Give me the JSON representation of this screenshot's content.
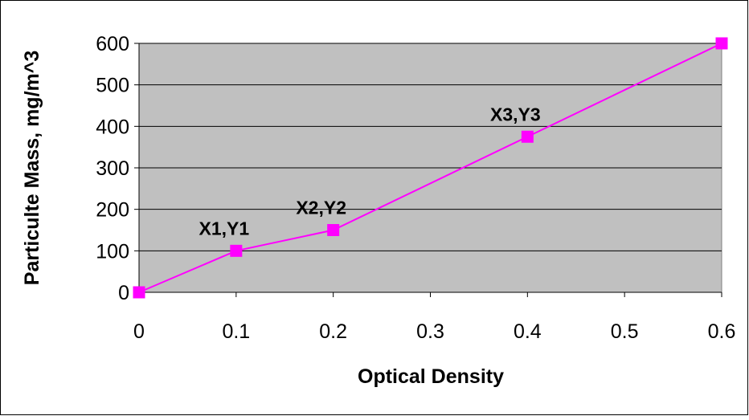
{
  "chart_data": {
    "type": "line",
    "title": "",
    "xlabel": "Optical Density",
    "ylabel": "Particulte Mass, mg/m^3",
    "xlim": [
      0,
      0.6
    ],
    "ylim": [
      0,
      600
    ],
    "x_ticks": [
      "0",
      "0.1",
      "0.2",
      "0.3",
      "0.4",
      "0.5",
      "0.6"
    ],
    "y_ticks": [
      "0",
      "100",
      "200",
      "300",
      "400",
      "500",
      "600"
    ],
    "grid": "horizontal",
    "legend": "none",
    "series": [
      {
        "x": [
          0,
          0.1,
          0.2,
          0.4,
          0.6
        ],
        "y": [
          0,
          100,
          150,
          375,
          600
        ],
        "color": "#ff00ff"
      }
    ],
    "annotations": [
      {
        "text": "X1,Y1",
        "x": 0.1,
        "y": 100
      },
      {
        "text": "X2,Y2",
        "x": 0.2,
        "y": 150
      },
      {
        "text": "X3,Y3",
        "x": 0.4,
        "y": 375
      }
    ],
    "plot_background": "#c0c0c0",
    "gridline_color": "#000000"
  }
}
